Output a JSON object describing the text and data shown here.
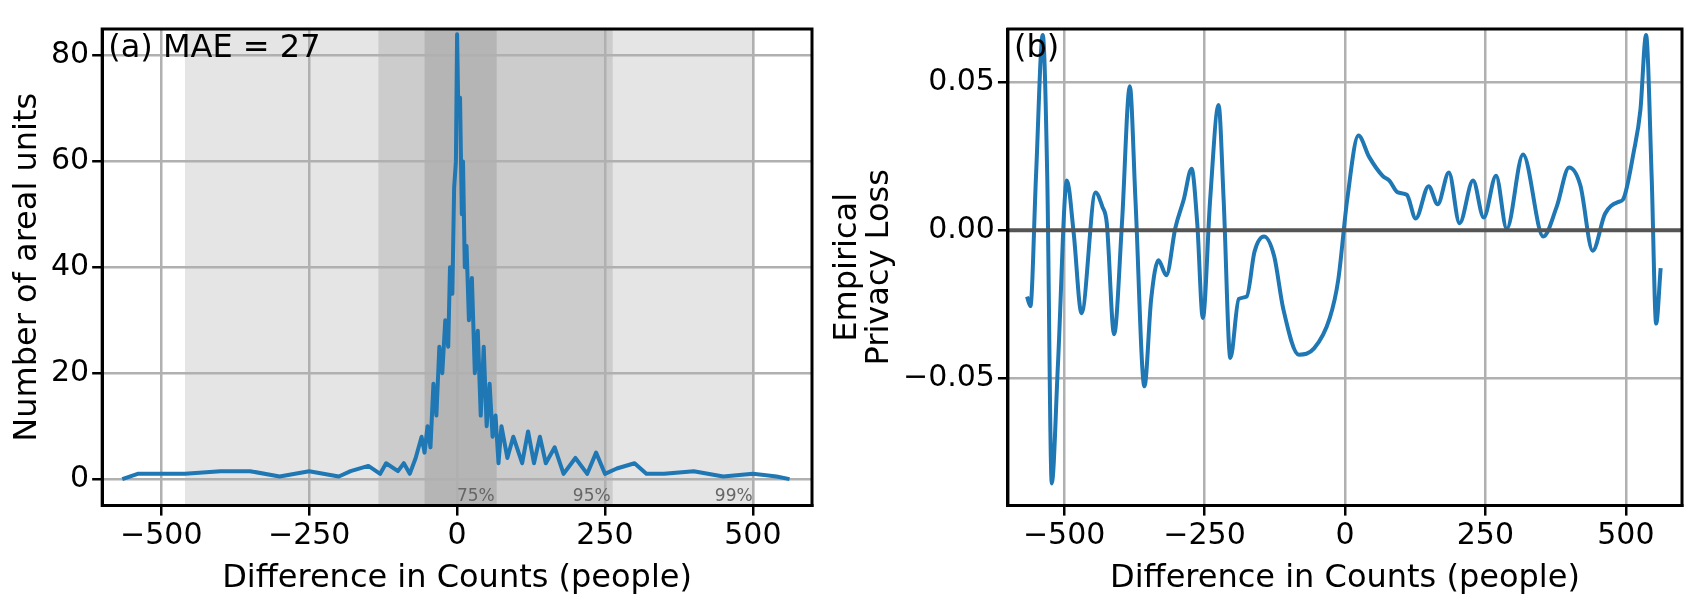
{
  "chart_data": [
    {
      "type": "line",
      "xlabel": "Difference in Counts (people)",
      "ylabel": "Number of areal units",
      "annotations": [
        "(a) MAE = 27"
      ],
      "x": [
        -566,
        -540,
        -500,
        -460,
        -400,
        -350,
        -300,
        -250,
        -200,
        -180,
        -150,
        -130,
        -120,
        -100,
        -90,
        -80,
        -70,
        -60,
        -55,
        -50,
        -45,
        -40,
        -35,
        -30,
        -25,
        -20,
        -15,
        -12,
        -8,
        -5,
        -2,
        0,
        2,
        5,
        8,
        10,
        13,
        16,
        20,
        25,
        30,
        35,
        40,
        45,
        50,
        55,
        60,
        65,
        70,
        75,
        85,
        95,
        110,
        120,
        130,
        140,
        150,
        165,
        180,
        200,
        220,
        235,
        250,
        270,
        300,
        320,
        350,
        400,
        450,
        500,
        540,
        562
      ],
      "series": [
        {
          "color": "#1f77b4",
          "values": [
            0,
            1,
            1,
            1,
            1.5,
            1.5,
            0.5,
            1.5,
            0.5,
            1.5,
            2.5,
            1,
            3,
            1.5,
            3,
            1,
            4,
            8,
            5,
            10,
            6,
            18,
            12,
            25,
            20,
            30,
            25,
            40,
            35,
            55,
            60,
            84,
            70,
            72,
            50,
            60,
            40,
            44,
            30,
            38,
            20,
            28,
            12,
            25,
            10,
            18,
            8,
            12,
            3,
            10,
            4,
            8,
            3,
            9,
            3,
            8,
            3,
            6,
            1,
            4,
            1,
            5,
            1,
            2,
            3,
            1,
            1,
            1.5,
            0.5,
            1,
            0.5,
            0
          ]
        }
      ],
      "xlim": [
        -600,
        600
      ],
      "ylim": [
        -5,
        85
      ],
      "xticks": [
        -500,
        -250,
        0,
        250,
        500
      ],
      "yticks": [
        0,
        20,
        40,
        60,
        80
      ],
      "bands": [
        {
          "axis": "x",
          "from": -460,
          "to": 503,
          "label": "99%",
          "color": "#e5e5e5"
        },
        {
          "axis": "x",
          "from": -133,
          "to": 263,
          "label": "95%",
          "color": "#cccccc"
        },
        {
          "axis": "x",
          "from": -55,
          "to": 67,
          "label": "75%",
          "color": "#b5b5b5"
        }
      ],
      "grid": true,
      "legend": false,
      "line_style": "solid",
      "marker": "none"
    },
    {
      "type": "line",
      "xlabel": "Difference in Counts (people)",
      "ylabel": "Empirical\nPrivacy Loss",
      "annotations": [
        "(b)"
      ],
      "x": [
        -566,
        -560,
        -550,
        -538,
        -530,
        -522,
        -511,
        -495,
        -483,
        -469,
        -444,
        -432,
        -424,
        -411,
        -397,
        -383,
        -373,
        -357,
        -345,
        -332,
        -318,
        -302,
        -287,
        -273,
        -263,
        -253,
        -240,
        -225,
        -216,
        -204,
        -189,
        -175,
        -161,
        -144,
        -126,
        -110,
        -82,
        -55,
        -27,
        -12,
        4,
        24,
        43,
        67,
        79,
        94,
        110,
        126,
        149,
        165,
        185,
        204,
        228,
        247,
        269,
        288,
        317,
        353,
        377,
        399,
        419,
        441,
        463,
        487,
        495,
        514,
        526,
        536,
        546,
        554,
        562
      ],
      "series": [
        {
          "color": "#1f77b4",
          "values": [
            -0.0224,
            -0.0256,
            0.0184,
            0.066,
            0.018,
            -0.0855,
            -0.0455,
            0.0168,
            -0.0008,
            -0.028,
            0.0128,
            0.008,
            0.0024,
            -0.0351,
            0.0024,
            0.0487,
            0.0104,
            -0.0527,
            -0.0232,
            -0.0101,
            -0.0152,
            0.0008,
            0.0104,
            0.0208,
            0.0024,
            -0.0296,
            0.0104,
            0.0423,
            0.0104,
            -0.0431,
            -0.0232,
            -0.0224,
            -0.0072,
            -0.0021,
            -0.0088,
            -0.0264,
            -0.042,
            -0.0399,
            -0.0296,
            -0.0168,
            0.0104,
            0.032,
            0.0248,
            0.0184,
            0.0168,
            0.0128,
            0.012,
            0.004,
            0.0149,
            0.0088,
            0.0195,
            0.0024,
            0.0168,
            0.0043,
            0.0184,
            0.0005,
            0.0256,
            -0.0021,
            0.008,
            0.0212,
            0.0152,
            -0.0069,
            0.0056,
            0.0096,
            0.0104,
            0.0264,
            0.0407,
            0.066,
            0.018,
            -0.0315,
            -0.0128
          ]
        }
      ],
      "xlim": [
        -600,
        600
      ],
      "ylim": [
        -0.093,
        0.068
      ],
      "xticks": [
        -500,
        -250,
        0,
        250,
        500
      ],
      "yticks": [
        {
          "value": -0.05,
          "label": "−0.05"
        },
        {
          "value": 0,
          "label": "0.00"
        },
        {
          "value": 0.05,
          "label": "0.05"
        }
      ],
      "ref_lines": [
        {
          "axis": "y",
          "value": 0,
          "color": "#555555"
        }
      ],
      "grid": true,
      "legend": false,
      "line_style": "solid",
      "marker": "none"
    }
  ]
}
